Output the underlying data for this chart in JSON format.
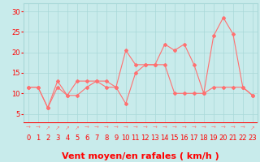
{
  "x": [
    0,
    1,
    2,
    3,
    4,
    5,
    6,
    7,
    8,
    9,
    10,
    11,
    12,
    13,
    14,
    15,
    16,
    17,
    18,
    19,
    20,
    21,
    22,
    23
  ],
  "wind_mean": [
    11.5,
    11.5,
    6.5,
    11.5,
    9.5,
    9.5,
    11.5,
    13,
    13,
    11.5,
    7.5,
    15,
    17,
    17,
    17,
    10,
    10,
    10,
    10,
    11.5,
    11.5,
    11.5,
    11.5,
    9.5
  ],
  "wind_gust": [
    11.5,
    11.5,
    6.5,
    13,
    9.5,
    13,
    13,
    13,
    11.5,
    11.5,
    20.5,
    17,
    17,
    17,
    22,
    20.5,
    22,
    17,
    10,
    24,
    28.5,
    24.5,
    11.5,
    9.5
  ],
  "line_color": "#FF7070",
  "bg_color": "#C8EBEB",
  "grid_color": "#A8D8D8",
  "xlabel": "Vent moyen/en rafales ( km/h )",
  "xlabel_color": "#FF0000",
  "xlabel_fontsize": 8,
  "ylabel_ticks": [
    5,
    10,
    15,
    20,
    25,
    30
  ],
  "ylim": [
    3,
    32
  ],
  "xlim": [
    -0.5,
    23.5
  ],
  "tick_color": "#FF0000",
  "tick_fontsize": 6,
  "marker": "D",
  "marker_size": 2,
  "line_width": 0.8,
  "arrow_color": "#FF8080",
  "red_line_color": "#FF0000"
}
